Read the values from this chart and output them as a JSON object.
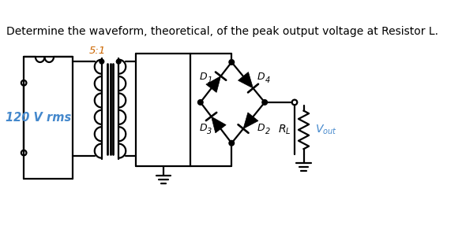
{
  "title": "Determine the waveform, theoretical, of the peak output voltage at Resistor L.",
  "title_fontsize": 10,
  "title_color": "#000000",
  "bg_color": "#ffffff",
  "label_51": "5:1",
  "label_120": "120 V rms",
  "text_color_blue": "#4488CC",
  "text_color_orange": "#CC6600",
  "text_color_black": "#000000",
  "line_color": "#000000",
  "line_width": 1.6
}
